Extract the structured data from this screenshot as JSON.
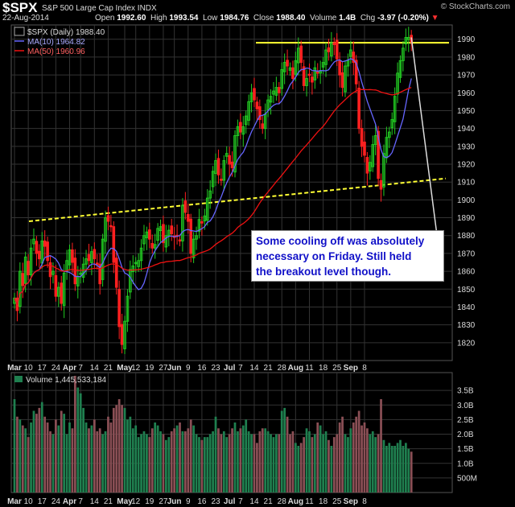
{
  "header": {
    "symbol": "$SPX",
    "description": "S&P 500 Large Cap Index  INDX",
    "brand": "© StockCharts.com",
    "date": "22-Aug-2014",
    "open_label": "Open",
    "open": "1992.60",
    "high_label": "High",
    "high": "1993.54",
    "low_label": "Low",
    "low": "1984.76",
    "close_label": "Close",
    "close": "1988.40",
    "volume_label": "Volume",
    "volume": "1.4B",
    "chg_label": "Chg",
    "chg": "-3.97 (-0.20%)",
    "chg_arrow": "▼"
  },
  "legend": {
    "price": "$SPX (Daily) 1988.40",
    "ma10": "MA(10) 1964.82",
    "ma50": "MA(50) 1960.96",
    "volume": "Volume 1,445,533,184"
  },
  "annotation": {
    "lines": [
      "Some cooling off was absolutely",
      "necessary on Friday. Still held",
      "the breakout level though."
    ]
  },
  "colors": {
    "up": "#22cc22",
    "down": "#ff2020",
    "ma10": "#6666ff",
    "ma50": "#ee1111",
    "trendline": "#ffff33",
    "grid": "#333333",
    "volume_up": "#1f7f4f",
    "volume_down": "#8a4f55"
  },
  "chart_data": [
    {
      "type": "candlestick",
      "title": "$SPX (Daily) 1988.40",
      "ylim": [
        1810,
        1998
      ],
      "yticks": [
        1820,
        1830,
        1840,
        1850,
        1860,
        1870,
        1880,
        1890,
        1900,
        1910,
        1920,
        1930,
        1940,
        1950,
        1960,
        1970,
        1980,
        1990
      ],
      "xticks": [
        "Mar",
        "10",
        "17",
        "24",
        "Apr",
        "7",
        "14",
        "21",
        "May",
        "12",
        "19",
        "27",
        "Jun",
        "9",
        "16",
        "23",
        "Jul",
        "7",
        "14",
        "21",
        "28",
        "Aug",
        "11",
        "18",
        "25",
        "Sep",
        "8"
      ],
      "close": [
        1845,
        1838,
        1860,
        1852,
        1868,
        1858,
        1873,
        1878,
        1870,
        1867,
        1877,
        1874,
        1866,
        1857,
        1860,
        1846,
        1851,
        1842,
        1859,
        1866,
        1872,
        1865,
        1853,
        1857,
        1859,
        1864,
        1867,
        1866,
        1871,
        1867,
        1864,
        1853,
        1878,
        1890,
        1888,
        1885,
        1865,
        1851,
        1829,
        1819,
        1832,
        1846,
        1861,
        1863,
        1865,
        1866,
        1873,
        1880,
        1882,
        1878,
        1873,
        1875,
        1884,
        1885,
        1876,
        1880,
        1883,
        1881,
        1879,
        1880,
        1877,
        1897,
        1893,
        1888,
        1870,
        1878,
        1880,
        1889,
        1887,
        1891,
        1901,
        1905,
        1916,
        1922,
        1914,
        1911,
        1922,
        1926,
        1920,
        1918,
        1936,
        1941,
        1938,
        1941,
        1947,
        1955,
        1960,
        1956,
        1951,
        1945,
        1940,
        1948,
        1956,
        1958,
        1961,
        1963,
        1960,
        1973,
        1977,
        1975,
        1974,
        1968,
        1978,
        1985,
        1977,
        1964,
        1968,
        1970,
        1966,
        1974,
        1971,
        1972,
        1977,
        1984,
        1983,
        1988,
        1987,
        1979,
        1970,
        1963,
        1975,
        1978,
        1984,
        1977,
        1965,
        1940,
        1930,
        1925,
        1915,
        1921,
        1931,
        1936,
        1912,
        1906,
        1926,
        1935,
        1938,
        1945,
        1958,
        1971,
        1978,
        1985,
        1991,
        1991,
        1988.4
      ],
      "ma10": 1964.82,
      "ma50": 1960.96,
      "annotation": "Some cooling off was absolutely necessary on Friday. Still held the breakout level though."
    },
    {
      "type": "bar",
      "title": "Volume 1,445,533,184",
      "ylim": [
        0,
        4000000000
      ],
      "yticks": [
        "500M",
        "1.0B",
        "1.5B",
        "2.0B",
        "2.5B",
        "3.0B",
        "3.5B"
      ],
      "last_value": 1445533184,
      "values_b": [
        3.2,
        2.6,
        2.5,
        2.3,
        2.2,
        1.9,
        2.4,
        2.8,
        2.7,
        2.9,
        3.1,
        2.6,
        2.4,
        2.1,
        2.0,
        2.5,
        2.3,
        2.8,
        2.7,
        2.0,
        2.4,
        2.2,
        4.0,
        3.6,
        3.4,
        2.9,
        2.4,
        2.2,
        2.3,
        2.5,
        2.1,
        2.2,
        2.0,
        2.1,
        2.6,
        2.4,
        2.9,
        3.0,
        3.2,
        3.0,
        2.9,
        2.5,
        2.6,
        2.2,
        2.3,
        1.9,
        2.0,
        2.1,
        2.0,
        1.9,
        2.2,
        2.4,
        2.3,
        2.1,
        2.0,
        1.8,
        1.9,
        2.1,
        2.2,
        2.3,
        2.4,
        2.1,
        2.1,
        2.2,
        2.5,
        2.3,
        2.0,
        1.9,
        1.8,
        1.9,
        1.9,
        2.0,
        2.1,
        2.6,
        2.2,
        2.0,
        2.1,
        1.9,
        2.0,
        2.2,
        2.4,
        2.1,
        2.2,
        2.3,
        2.5,
        2.1,
        2.0,
        2.0,
        1.7,
        2.1,
        2.2,
        2.2,
        2.1,
        2.0,
        1.9,
        2.0,
        2.0,
        2.8,
        2.9,
        2.6,
        2.0,
        2.1,
        1.7,
        1.6,
        1.7,
        1.9,
        2.2,
        2.1,
        1.9,
        2.0,
        2.4,
        2.3,
        2.0,
        2.1,
        1.8,
        1.6,
        1.9,
        2.0,
        2.4,
        2.6,
        2.0,
        1.9,
        2.2,
        2.4,
        2.6,
        2.8,
        2.3,
        2.4,
        2.2,
        2.0,
        2.1,
        1.9,
        2.0,
        3.2,
        1.8,
        1.6,
        1.7,
        1.6,
        1.6,
        1.7,
        1.8,
        1.6,
        1.7,
        1.5,
        1.4
      ]
    }
  ]
}
